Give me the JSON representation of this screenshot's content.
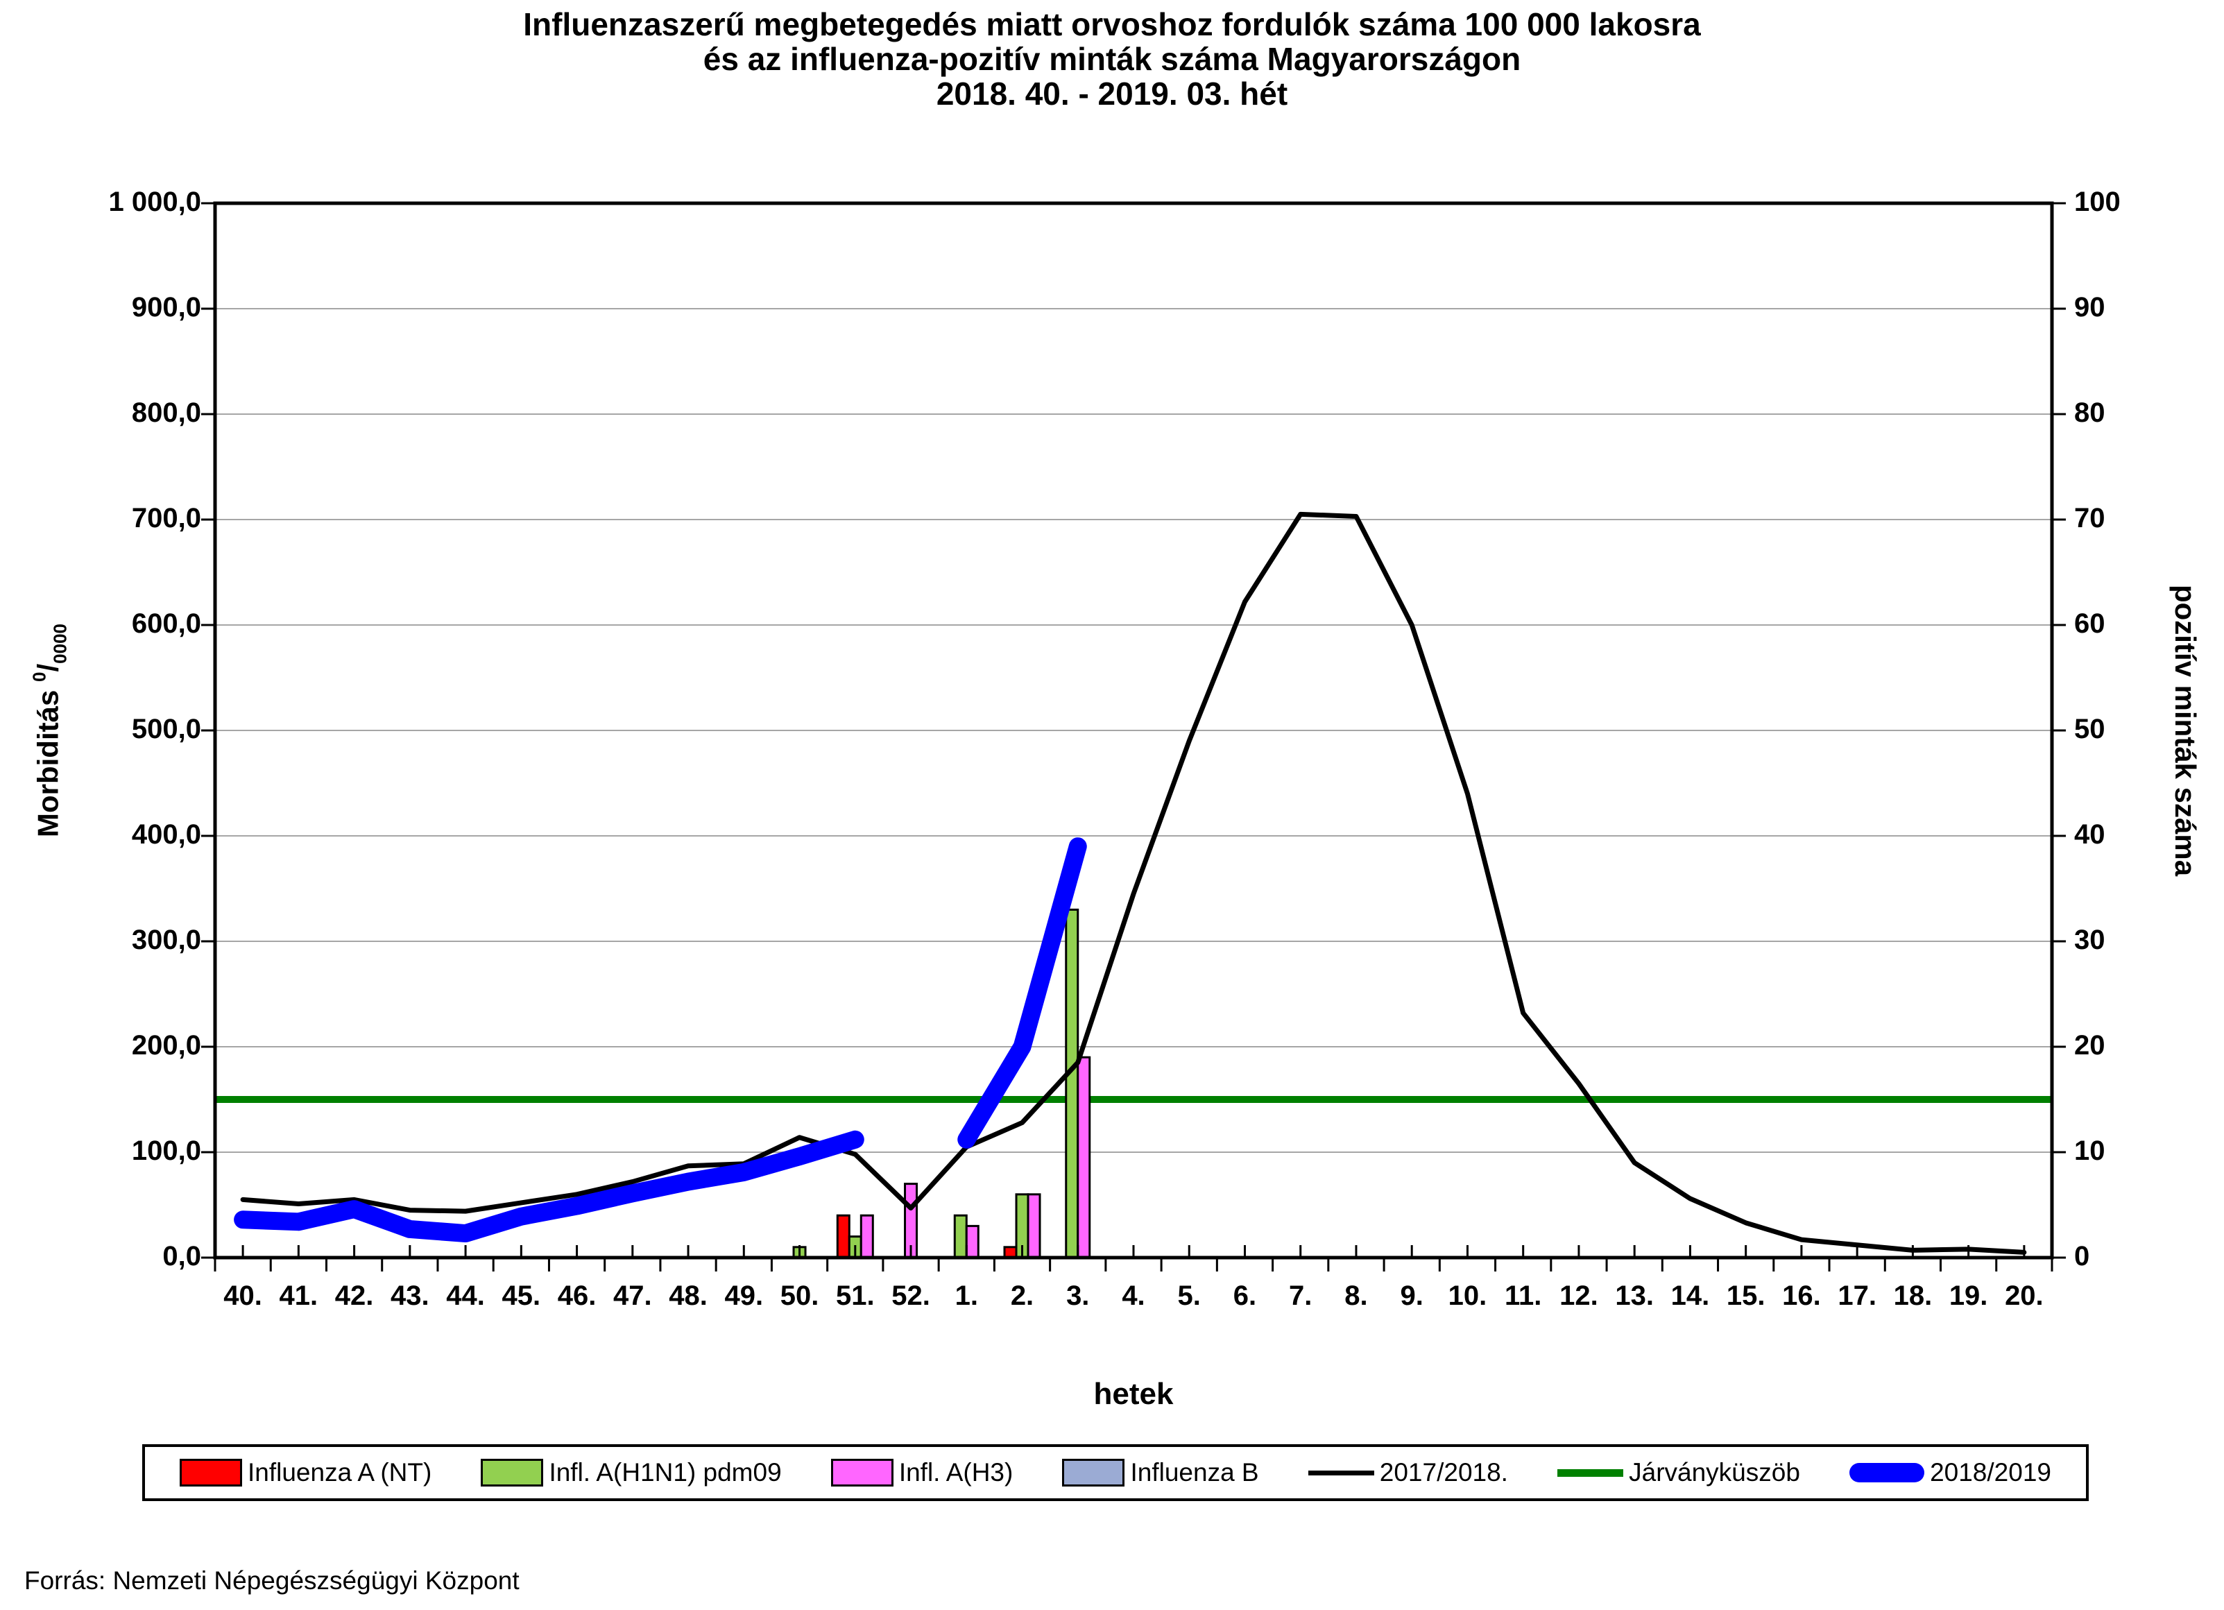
{
  "title": {
    "line1": "Influenzaszerű megbetegedés miatt orvoshoz fordulók száma 100 000 lakosra",
    "line2": "és az influenza-pozitív minták száma Magyarországon",
    "line3": "2018. 40. - 2019. 03. hét"
  },
  "source": "Forrás: Nemzeti Népegészségügyi Központ",
  "axes": {
    "left": {
      "title_word": "Morbiditás",
      "unit_sup": "0",
      "unit_slash": "/",
      "unit_sub": "0000",
      "ticks": [
        "1 000,0",
        "900,0",
        "800,0",
        "700,0",
        "600,0",
        "500,0",
        "400,0",
        "300,0",
        "200,0",
        "100,0",
        "0,0"
      ]
    },
    "right": {
      "title": "pozitív minták száma",
      "ticks": [
        "100",
        "90",
        "80",
        "70",
        "60",
        "50",
        "40",
        "30",
        "20",
        "10",
        "0"
      ]
    },
    "x": {
      "title": "hetek"
    }
  },
  "legend": {
    "items": [
      {
        "label": "Influenza A (NT)",
        "type": "box",
        "color": "#FF0000"
      },
      {
        "label": "Infl. A(H1N1) pdm09",
        "type": "box",
        "color": "#92D050"
      },
      {
        "label": "Infl. A(H3)",
        "type": "box",
        "color": "#FF66FF"
      },
      {
        "label": "Influenza B",
        "type": "box",
        "color": "#9BABD4"
      },
      {
        "label": "2017/2018.",
        "type": "line-thin",
        "color": "#000000"
      },
      {
        "label": "Járványküszöb",
        "type": "line-medium",
        "color": "#008000"
      },
      {
        "label": "2018/2019",
        "type": "line-thick",
        "color": "#0000FF"
      }
    ]
  },
  "chart_data": {
    "type": "bar",
    "note": "combined column + line chart; bars read on right axis (pozitív minták száma), lines on left axis (Morbiditás)",
    "categories": [
      "40.",
      "41.",
      "42.",
      "43.",
      "44.",
      "45.",
      "46.",
      "47.",
      "48.",
      "49.",
      "50.",
      "51.",
      "52.",
      "1.",
      "2.",
      "3.",
      "4.",
      "5.",
      "6.",
      "7.",
      "8.",
      "9.",
      "10.",
      "11.",
      "12.",
      "13.",
      "14.",
      "15.",
      "16.",
      "17.",
      "18.",
      "19.",
      "20."
    ],
    "left_ylim": [
      0,
      1000
    ],
    "right_ylim": [
      0,
      100
    ],
    "grid": {
      "on": true,
      "color": "#A6A6A6",
      "step_left": 100
    },
    "bar_series": [
      {
        "name": "Influenza A (NT)",
        "color": "#FF0000",
        "axis": "right",
        "values": [
          null,
          null,
          null,
          null,
          null,
          null,
          null,
          null,
          null,
          null,
          null,
          4,
          null,
          null,
          1,
          null,
          null,
          null,
          null,
          null,
          null,
          null,
          null,
          null,
          null,
          null,
          null,
          null,
          null,
          null,
          null,
          null,
          null
        ]
      },
      {
        "name": "Infl. A(H1N1) pdm09",
        "color": "#92D050",
        "axis": "right",
        "values": [
          null,
          null,
          null,
          null,
          null,
          null,
          null,
          null,
          null,
          null,
          1,
          2,
          null,
          4,
          6,
          33,
          null,
          null,
          null,
          null,
          null,
          null,
          null,
          null,
          null,
          null,
          null,
          null,
          null,
          null,
          null,
          null,
          null
        ]
      },
      {
        "name": "Infl. A(H3)",
        "color": "#FF66FF",
        "axis": "right",
        "values": [
          null,
          null,
          null,
          null,
          null,
          null,
          null,
          null,
          null,
          null,
          null,
          4,
          7,
          3,
          6,
          19,
          null,
          null,
          null,
          null,
          null,
          null,
          null,
          null,
          null,
          null,
          null,
          null,
          null,
          null,
          null,
          null,
          null
        ]
      },
      {
        "name": "Influenza B",
        "color": "#9BABD4",
        "axis": "right",
        "values": [
          null,
          null,
          null,
          null,
          null,
          null,
          null,
          null,
          null,
          null,
          null,
          null,
          null,
          null,
          null,
          null,
          null,
          null,
          null,
          null,
          null,
          null,
          null,
          null,
          null,
          null,
          null,
          null,
          null,
          null,
          null,
          null,
          null
        ]
      }
    ],
    "line_series": [
      {
        "name": "2017/2018.",
        "color": "#000000",
        "width": 7,
        "axis": "left",
        "values": [
          55,
          51,
          55,
          45,
          44,
          52,
          60,
          72,
          87,
          89,
          114,
          98,
          47,
          105,
          128,
          185,
          345,
          490,
          622,
          705,
          703,
          600,
          440,
          232,
          165,
          90,
          56,
          33,
          17,
          12,
          7,
          8,
          5
        ]
      },
      {
        "name": "2018/2019",
        "color": "#0000FF",
        "width": 26,
        "axis": "left",
        "values": [
          36,
          34,
          46,
          27,
          23,
          39,
          49,
          61,
          72,
          81,
          96,
          112,
          null,
          112,
          200,
          390,
          null,
          null,
          null,
          null,
          null,
          null,
          null,
          null,
          null,
          null,
          null,
          null,
          null,
          null,
          null,
          null,
          null
        ]
      }
    ],
    "threshold": {
      "name": "Járványküszöb",
      "color": "#008000",
      "width": 10,
      "axis": "left",
      "value": 150
    }
  }
}
